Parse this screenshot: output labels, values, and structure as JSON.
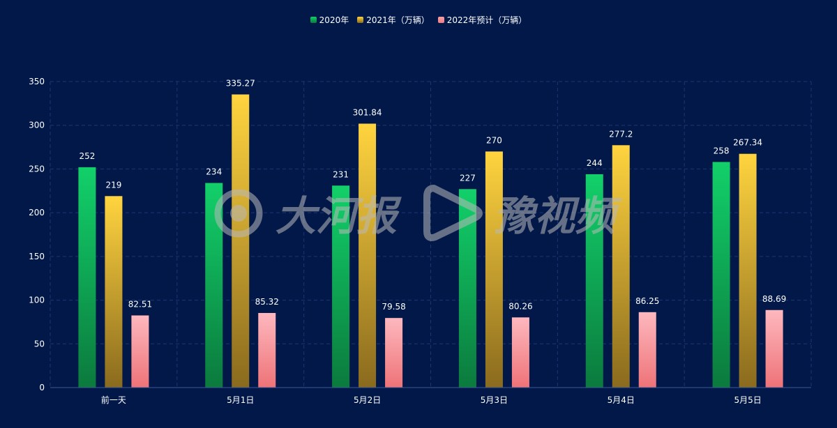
{
  "legend": [
    {
      "label": "2020年",
      "color_top": "#12d06a",
      "color_bottom": "#0b7a3d"
    },
    {
      "label": "2021年（万辆）",
      "color_top": "#ffd43f",
      "color_bottom": "#8a6a1e"
    },
    {
      "label": "2022年预计（万辆）",
      "color_top": "#f7a1a6",
      "color_bottom": "#f07d82"
    }
  ],
  "watermark": {
    "brand1": "大河报",
    "brand2": "豫视频"
  },
  "chart_data": {
    "type": "bar",
    "categories": [
      "前一天",
      "5月1日",
      "5月2日",
      "5月3日",
      "5月4日",
      "5月5日"
    ],
    "series": [
      {
        "name": "2020年",
        "values": [
          252,
          234,
          231,
          227,
          244,
          258
        ]
      },
      {
        "name": "2021年（万辆）",
        "values": [
          219,
          335.27,
          301.84,
          270,
          277.2,
          267.34
        ]
      },
      {
        "name": "2022年预计（万辆）",
        "values": [
          82.51,
          85.32,
          79.58,
          80.26,
          86.25,
          88.69
        ]
      }
    ],
    "ylim": [
      0,
      350
    ],
    "yticks": [
      0,
      50,
      100,
      150,
      200,
      250,
      300,
      350
    ],
    "grid": true,
    "legend_position": "top-center"
  }
}
